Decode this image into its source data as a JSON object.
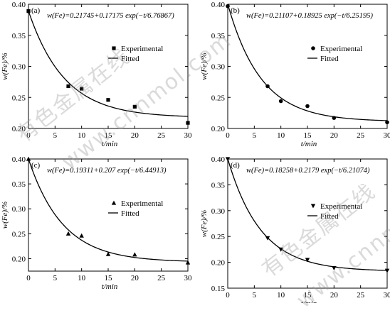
{
  "watermark": {
    "text_cn": "有色金属在线",
    "text_url": "www.cnnmol.com",
    "color": "#999999"
  },
  "chart_data": [
    {
      "type": "scatter",
      "panel_label": "(a)",
      "equation": "w(Fe)=0.21745+0.17175 exp(−t/6.76867)",
      "xlabel": "t/min",
      "ylabel": "w(Fe)/%",
      "xlim": [
        0,
        30
      ],
      "ylim": [
        0.2,
        0.4
      ],
      "xticks": [
        "0",
        "5",
        "10",
        "15",
        "20",
        "25",
        "30"
      ],
      "yticks": [
        "0.20",
        "0.25",
        "0.30",
        "0.35",
        "0.40"
      ],
      "legend_position": "right",
      "marker": "square",
      "series": [
        {
          "name": "Experimental",
          "kind": "points",
          "x": [
            0,
            7.5,
            10,
            15,
            20,
            30
          ],
          "y": [
            0.389,
            0.268,
            0.264,
            0.246,
            0.235,
            0.209
          ]
        },
        {
          "name": "Fitted",
          "kind": "curve",
          "model": {
            "a": 0.21745,
            "b": 0.17175,
            "tau": 6.76867
          }
        }
      ]
    },
    {
      "type": "scatter",
      "panel_label": "(b)",
      "equation": "w(Fe)=0.21107+0.18925 exp(−t/6.25195)",
      "xlabel": "t/min",
      "ylabel": "w(Fe)/%",
      "xlim": [
        0,
        30
      ],
      "ylim": [
        0.2,
        0.4
      ],
      "xticks": [
        "0",
        "5",
        "10",
        "15",
        "20",
        "25",
        "30"
      ],
      "yticks": [
        "0.20",
        "0.25",
        "0.30",
        "0.35",
        "0.40"
      ],
      "legend_position": "right",
      "marker": "circle",
      "series": [
        {
          "name": "Experimental",
          "kind": "points",
          "x": [
            0,
            7.5,
            10,
            15,
            20,
            30
          ],
          "y": [
            0.397,
            0.268,
            0.244,
            0.236,
            0.217,
            0.21
          ]
        },
        {
          "name": "Fitted",
          "kind": "curve",
          "model": {
            "a": 0.21107,
            "b": 0.18925,
            "tau": 6.25195
          }
        }
      ]
    },
    {
      "type": "scatter",
      "panel_label": "(c)",
      "equation": "w(Fe)=0.19311+0.207 exp(−t/6.44913)",
      "xlabel": "t/min",
      "ylabel": "w(Fe)/%",
      "xlim": [
        0,
        30
      ],
      "ylim": [
        0.175,
        0.4
      ],
      "xticks": [
        "0",
        "5",
        "10",
        "15",
        "20",
        "25",
        "30"
      ],
      "yticks": [
        "0.20",
        "0.25",
        "0.30",
        "0.35",
        "0.40"
      ],
      "legend_position": "right",
      "marker": "triangle",
      "series": [
        {
          "name": "Experimental",
          "kind": "points",
          "x": [
            0,
            7.5,
            10,
            15,
            20,
            30
          ],
          "y": [
            0.4,
            0.25,
            0.246,
            0.209,
            0.208,
            0.192
          ]
        },
        {
          "name": "Fitted",
          "kind": "curve",
          "model": {
            "a": 0.19311,
            "b": 0.207,
            "tau": 6.44913
          }
        }
      ]
    },
    {
      "type": "scatter",
      "panel_label": "(d)",
      "equation": "w(Fe)=0.18258+0.2179 exp(−t/6.21074)",
      "xlabel": "t/min",
      "ylabel": "w(Fe)/%",
      "xlim": [
        0,
        30
      ],
      "ylim": [
        0.15,
        0.4
      ],
      "xticks": [
        "0",
        "5",
        "10",
        "15",
        "20",
        "25",
        "30"
      ],
      "yticks": [
        "0.15",
        "0.20",
        "0.25",
        "0.30",
        "0.35",
        "0.40"
      ],
      "legend_position": "right",
      "marker": "inverted-triangle",
      "series": [
        {
          "name": "Experimental",
          "kind": "points",
          "x": [
            0,
            7.5,
            10,
            15,
            20,
            30
          ],
          "y": [
            0.4,
            0.247,
            0.225,
            0.205,
            0.189,
            0.184
          ]
        },
        {
          "name": "Fitted",
          "kind": "curve",
          "model": {
            "a": 0.18258,
            "b": 0.2179,
            "tau": 6.21074
          }
        }
      ]
    }
  ]
}
